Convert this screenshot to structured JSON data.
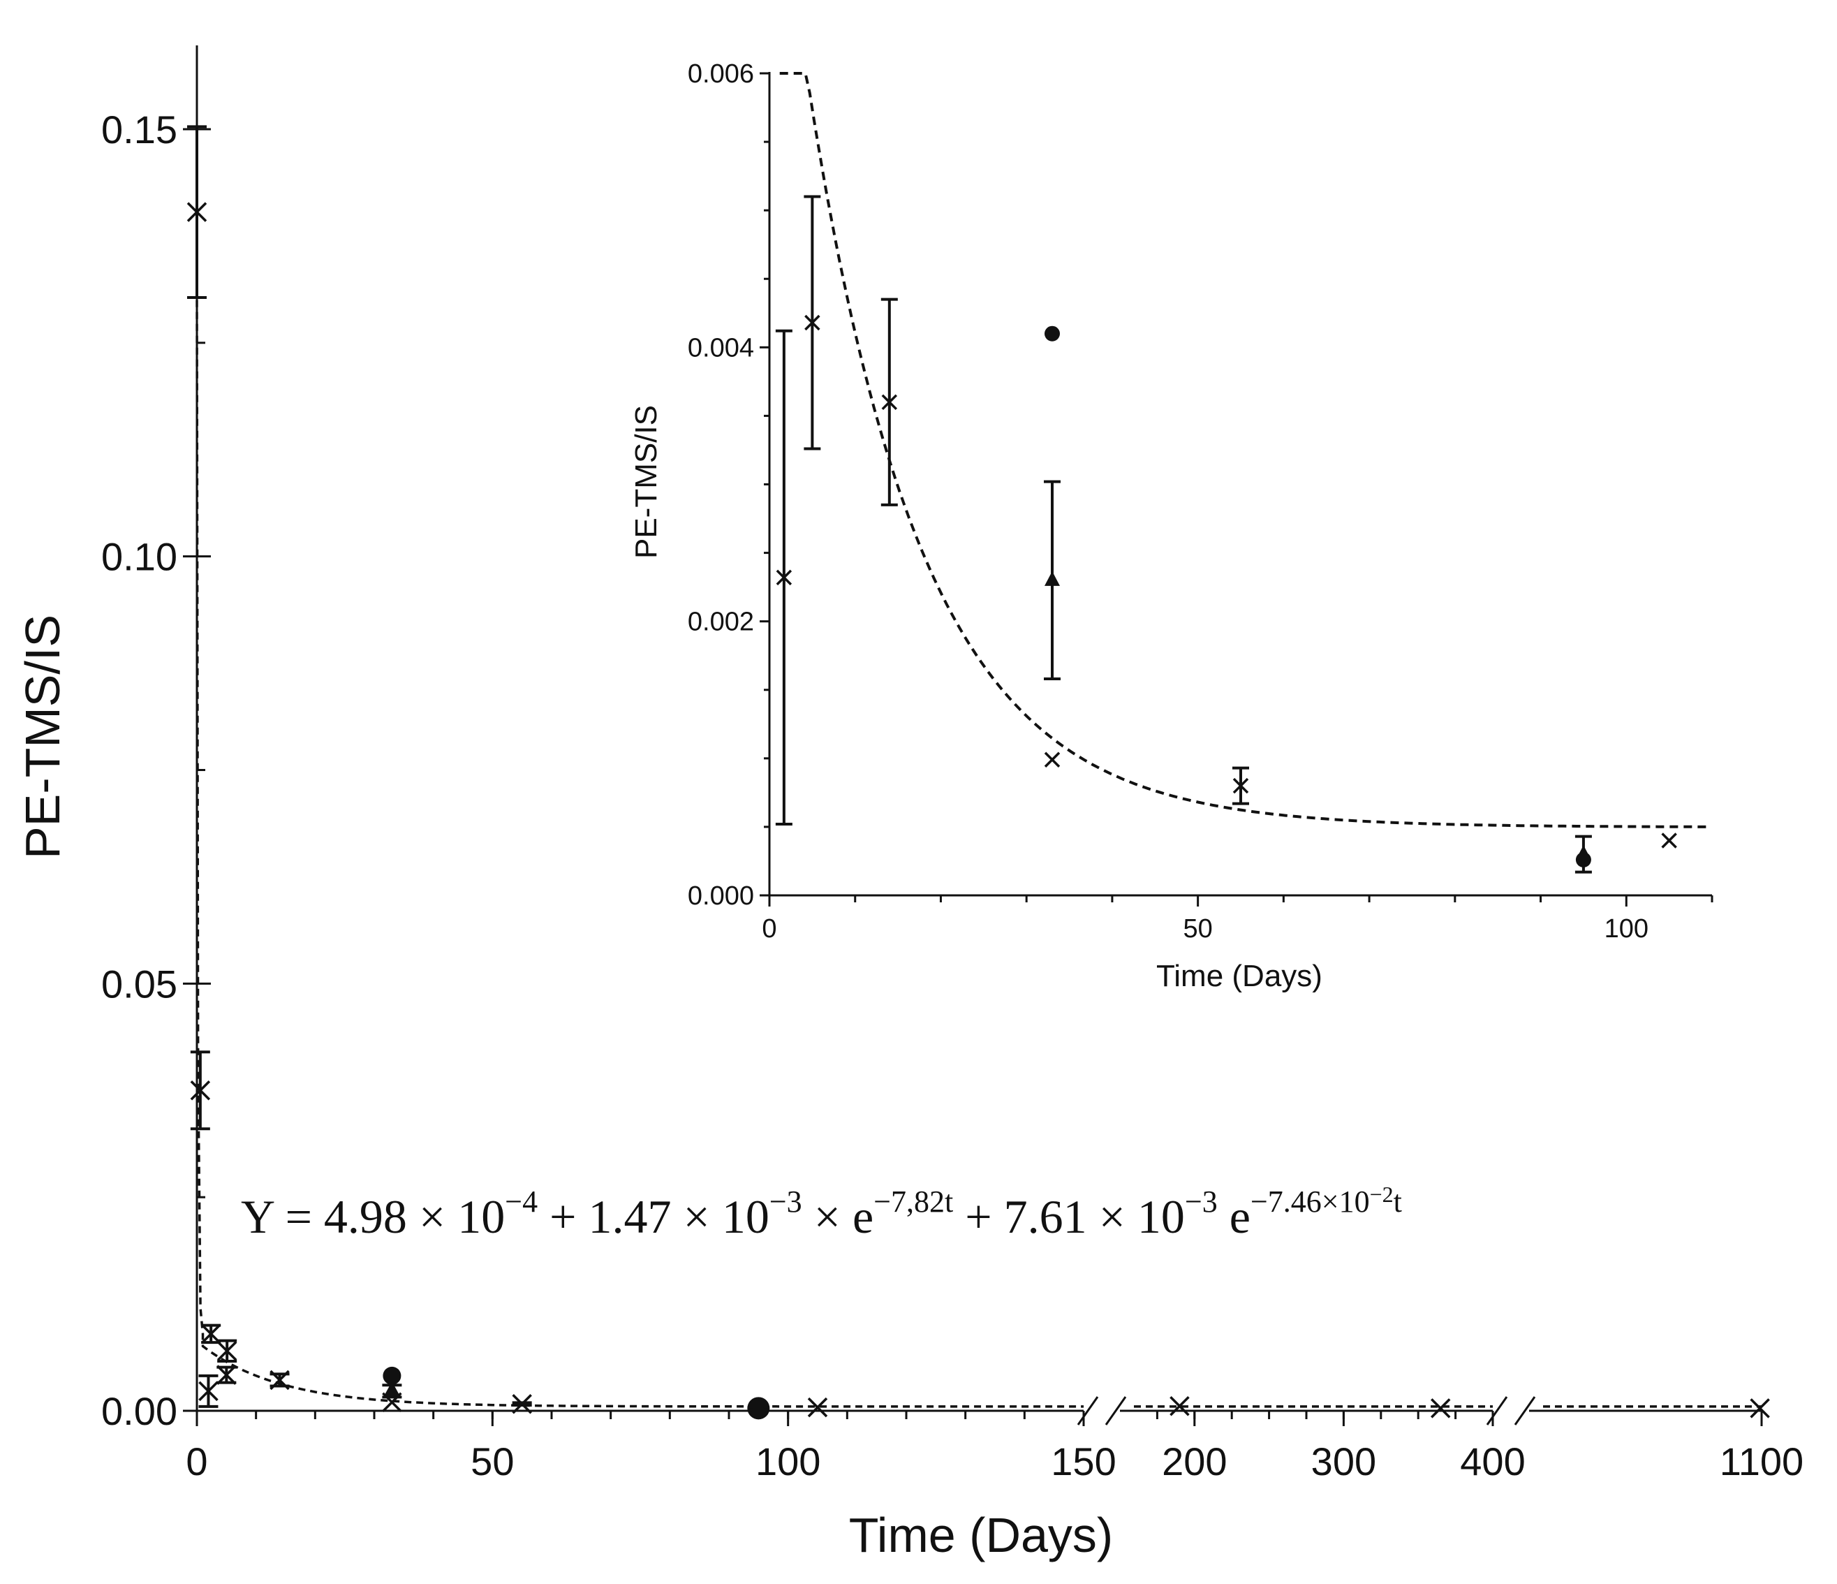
{
  "colors": {
    "ink": "#111111",
    "background": "#ffffff"
  },
  "equation": {
    "lhs": "Y = 4.98 × 10",
    "exp1": "−4",
    "part2": " + 1.47 × 10",
    "exp2": "−3",
    "part3": " ×  e",
    "exp3": "−7,82t",
    "part4": " + 7.61 × 10",
    "exp4": "−3",
    "part5": " e",
    "exp5": "−7.46×10",
    "exp5sup": "−2",
    "exp5t": "t"
  },
  "chart_data": [
    {
      "id": "main",
      "type": "scatter",
      "xlabel": "Time  (Days)",
      "ylabel": "PE-TMS/IS",
      "ylim": [
        0,
        0.16
      ],
      "y_ticks": [
        0,
        0.05,
        0.1,
        0.15
      ],
      "y_tick_labels": [
        "0.00",
        "0.05",
        "0.10",
        "0.15"
      ],
      "x_axis_segments": [
        {
          "range": [
            0,
            150
          ],
          "major_ticks": [
            0,
            50,
            100,
            150
          ],
          "labels": [
            "0",
            "50",
            "100",
            "150"
          ],
          "minor_step": 10
        },
        {
          "range": [
            150,
            400
          ],
          "major_ticks": [
            200,
            300,
            400
          ],
          "labels": [
            "200",
            "300",
            "400"
          ],
          "minor_step": 25
        },
        {
          "range": [
            400,
            1100
          ],
          "major_ticks": [
            1100
          ],
          "labels": [
            "1100"
          ],
          "minor_step": null
        }
      ],
      "fit": {
        "a": 0.000498,
        "b": 0.00147,
        "k1": 7.82,
        "c": 0.00761,
        "k2": 0.0746,
        "note": "dashed line"
      },
      "series": [
        {
          "name": "cross markers",
          "marker": "x",
          "points": [
            {
              "x": 0,
              "y": 0.1403,
              "err": 0.01
            },
            {
              "x": 0.1,
              "y": 0.0375,
              "err": 0.0045
            },
            {
              "x": 1,
              "y": 0.0023,
              "err": 0.0018
            },
            {
              "x": 1.2,
              "y": 0.009,
              "err": 0.001
            },
            {
              "x": 2.5,
              "y": 0.007,
              "err": 0.0012
            },
            {
              "x": 5,
              "y": 0.0042,
              "err": 0.0009
            },
            {
              "x": 14,
              "y": 0.0036,
              "err": 0.0007
            },
            {
              "x": 33,
              "y": 0.001,
              "err": 0
            },
            {
              "x": 55,
              "y": 0.0008,
              "err": 0.00015
            },
            {
              "x": 105,
              "y": 0.0004,
              "err": 0
            },
            {
              "x": 190,
              "y": 0.00055,
              "err": 0
            },
            {
              "x": 365,
              "y": 0.0003,
              "err": 0
            },
            {
              "x": 1095,
              "y": 0.0003,
              "err": 0
            }
          ]
        },
        {
          "name": "circle markers",
          "marker": "circle",
          "points": [
            {
              "x": 33,
              "y": 0.0041,
              "err": 0
            },
            {
              "x": 95,
              "y": 0.0003,
              "err": 0
            }
          ]
        },
        {
          "name": "triangle markers",
          "marker": "triangle",
          "points": [
            {
              "x": 33,
              "y": 0.0023,
              "err": 0.0007
            },
            {
              "x": 95,
              "y": 0.0003,
              "err": 0.00015
            }
          ]
        }
      ]
    },
    {
      "id": "inset",
      "type": "scatter",
      "xlabel": "Time  (Days)",
      "ylabel": "PE-TMS/IS",
      "xlim": [
        0,
        110
      ],
      "ylim": [
        0,
        0.006
      ],
      "x_ticks": [
        0,
        50,
        100
      ],
      "x_tick_labels": [
        "0",
        "50",
        "100"
      ],
      "y_ticks": [
        0,
        0.002,
        0.004,
        0.006
      ],
      "y_tick_labels": [
        "0.000",
        "0.002",
        "0.004",
        "0.006"
      ],
      "series": [
        {
          "name": "cross markers",
          "marker": "x",
          "points": [
            {
              "x": 1.7,
              "y": 0.00232,
              "err": 0.0018
            },
            {
              "x": 5,
              "y": 0.00418,
              "err": 0.00092
            },
            {
              "x": 14,
              "y": 0.0036,
              "err": 0.00075
            },
            {
              "x": 33,
              "y": 0.00099,
              "err": 0
            },
            {
              "x": 55,
              "y": 0.0008,
              "err": 0.00013
            },
            {
              "x": 105,
              "y": 0.0004,
              "err": 0
            }
          ]
        },
        {
          "name": "circle markers",
          "marker": "circle",
          "points": [
            {
              "x": 33,
              "y": 0.0041,
              "err": 0
            },
            {
              "x": 95,
              "y": 0.00026,
              "err": 0
            }
          ]
        },
        {
          "name": "triangle markers",
          "marker": "triangle",
          "points": [
            {
              "x": 33,
              "y": 0.0023,
              "err": 0.00072
            },
            {
              "x": 95,
              "y": 0.0003,
              "err": 0.00013
            }
          ]
        }
      ]
    }
  ]
}
